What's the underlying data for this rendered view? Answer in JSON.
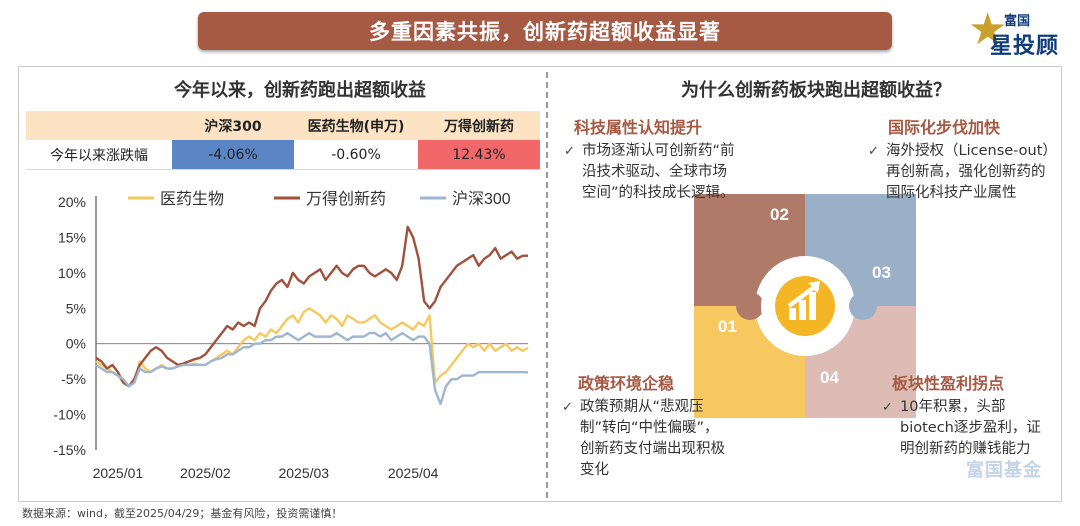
{
  "header": {
    "title": "多重因素共振，创新药超额收益显著",
    "brand_top": "富国",
    "brand_bottom": "星投顾"
  },
  "left": {
    "title": "今年以来，创新药跑出超额收益",
    "table": {
      "columns": [
        "",
        "沪深300",
        "医药生物(申万)",
        "万得创新药"
      ],
      "row_label": "今年以来涨跌幅",
      "values": [
        "-4.06%",
        "-0.60%",
        "12.43%"
      ],
      "cell_colors": [
        "#5b86c5",
        "#ffffff",
        "#f2676a"
      ]
    }
  },
  "chart_data": {
    "type": "line",
    "x_ticks": [
      "2025/01",
      "2025/02",
      "2025/03",
      "2025/04"
    ],
    "y_ticks": [
      "20%",
      "15%",
      "10%",
      "5%",
      "0%",
      "-5%",
      "-10%",
      "-15%"
    ],
    "ylim": [
      -15,
      20
    ],
    "x": [
      0,
      1,
      2,
      3,
      4,
      5,
      6,
      7,
      8,
      9,
      10,
      11,
      12,
      13,
      14,
      15,
      16,
      17,
      18,
      19,
      20,
      21,
      22,
      23,
      24,
      25,
      26,
      27,
      28,
      29,
      30,
      31,
      32,
      33,
      34,
      35,
      36,
      37,
      38,
      39,
      40,
      41,
      42,
      43,
      44,
      45,
      46,
      47,
      48,
      49,
      50,
      51,
      52,
      53,
      54,
      55,
      56,
      57,
      58,
      59,
      60,
      61,
      62,
      63,
      64,
      65,
      66,
      67,
      68,
      69,
      70,
      71,
      72,
      73,
      74,
      75,
      76,
      77,
      78,
      79
    ],
    "legend": [
      "医药生物",
      "万得创新药",
      "沪深300"
    ],
    "series": [
      {
        "name": "医药生物",
        "color": "#f6c85f",
        "values": [
          -2.5,
          -3.0,
          -3.5,
          -4.0,
          -4.5,
          -5.5,
          -6.0,
          -5.5,
          -2.5,
          -3.5,
          -4.0,
          -3.5,
          -3.0,
          -3.5,
          -3.5,
          -3.2,
          -3.0,
          -3.0,
          -2.8,
          -3.0,
          -3.0,
          -2.5,
          -2.0,
          -1.5,
          -1.0,
          -1.5,
          -0.5,
          0.5,
          1.0,
          0.5,
          1.5,
          1.0,
          2.0,
          1.5,
          2.5,
          3.5,
          4.0,
          3.0,
          4.5,
          5.0,
          4.5,
          4.0,
          3.0,
          4.0,
          3.5,
          2.5,
          4.0,
          3.5,
          3.0,
          3.0,
          3.5,
          4.0,
          3.0,
          2.5,
          2.0,
          2.5,
          3.0,
          2.5,
          2.0,
          3.0,
          2.5,
          4.0,
          -5.5,
          -4.5,
          -4.0,
          -3.0,
          -2.0,
          -1.0,
          0.0,
          -0.5,
          0.0,
          -1.0,
          0.0,
          -1.0,
          -0.5,
          0.0,
          -1.0,
          -0.5,
          -1.0,
          -0.6
        ]
      },
      {
        "name": "万得创新药",
        "color": "#a0523d",
        "values": [
          -2.0,
          -2.5,
          -3.5,
          -3.0,
          -4.0,
          -5.5,
          -6.0,
          -5.0,
          -3.0,
          -2.0,
          -1.0,
          -0.5,
          -1.0,
          -2.0,
          -2.5,
          -3.0,
          -2.8,
          -2.5,
          -2.2,
          -2.0,
          -1.5,
          -0.5,
          0.5,
          1.5,
          2.5,
          2.0,
          3.0,
          2.5,
          3.0,
          2.5,
          5.0,
          6.0,
          7.5,
          8.5,
          9.0,
          8.0,
          10.0,
          9.0,
          8.5,
          9.5,
          10.0,
          10.5,
          9.0,
          10.0,
          11.0,
          10.0,
          9.5,
          10.5,
          11.0,
          11.0,
          10.0,
          9.5,
          10.0,
          10.5,
          10.0,
          9.0,
          11.0,
          16.5,
          15.0,
          12.0,
          6.0,
          5.0,
          6.0,
          8.0,
          9.0,
          10.0,
          11.0,
          11.5,
          12.0,
          12.5,
          11.0,
          12.0,
          12.5,
          13.5,
          12.0,
          12.5,
          13.0,
          12.0,
          12.4,
          12.43
        ]
      },
      {
        "name": "沪深300",
        "color": "#9fb6d1",
        "values": [
          -3.0,
          -3.5,
          -4.0,
          -4.0,
          -4.5,
          -5.0,
          -6.0,
          -5.5,
          -3.5,
          -4.0,
          -4.0,
          -3.5,
          -3.2,
          -3.5,
          -3.5,
          -3.2,
          -3.0,
          -3.0,
          -3.0,
          -3.0,
          -3.0,
          -2.5,
          -2.2,
          -2.0,
          -1.5,
          -1.5,
          -1.0,
          -0.5,
          -0.5,
          0.0,
          0.0,
          0.5,
          0.5,
          1.0,
          1.0,
          1.5,
          1.0,
          0.5,
          1.0,
          1.5,
          1.0,
          1.0,
          1.0,
          1.0,
          1.5,
          1.0,
          0.5,
          1.0,
          1.0,
          1.0,
          1.5,
          1.5,
          1.0,
          1.5,
          0.5,
          1.0,
          1.5,
          1.0,
          0.5,
          1.0,
          1.0,
          0.0,
          -6.5,
          -8.5,
          -6.0,
          -5.0,
          -5.0,
          -4.5,
          -4.5,
          -4.5,
          -4.0,
          -4.0,
          -4.0,
          -4.0,
          -4.0,
          -4.0,
          -4.0,
          -4.0,
          -4.0,
          -4.06
        ]
      }
    ]
  },
  "right": {
    "title": "为什么创新药板块跑出超额收益？",
    "quadrants": [
      {
        "num": "02",
        "title": "科技属性认知提升",
        "text": "市场逐渐认可创新药“前沿技术驱动、全球市场空间”的科技成长逻辑。"
      },
      {
        "num": "03",
        "title": "国际化步伐加快",
        "text": "海外授权（License-out）再创新高，强化创新药的国际化科技产业属性"
      },
      {
        "num": "01",
        "title": "政策环境企稳",
        "text": "政策预期从“悲观压制”转向“中性偏暖”，创新药支付端出现积极变化"
      },
      {
        "num": "04",
        "title": "板块性盈利拐点",
        "text": "10年积累，头部biotech逐步盈利，证明创新药的赚钱能力"
      }
    ],
    "colors": [
      "#f6c85f",
      "#b07a68",
      "#9ab0c9",
      "#dcbcb4"
    ]
  },
  "footer": {
    "source": "数据来源：wind，截至2025/04/29；基金有风险，投资需谨慎！",
    "watermark": "富国基金"
  }
}
